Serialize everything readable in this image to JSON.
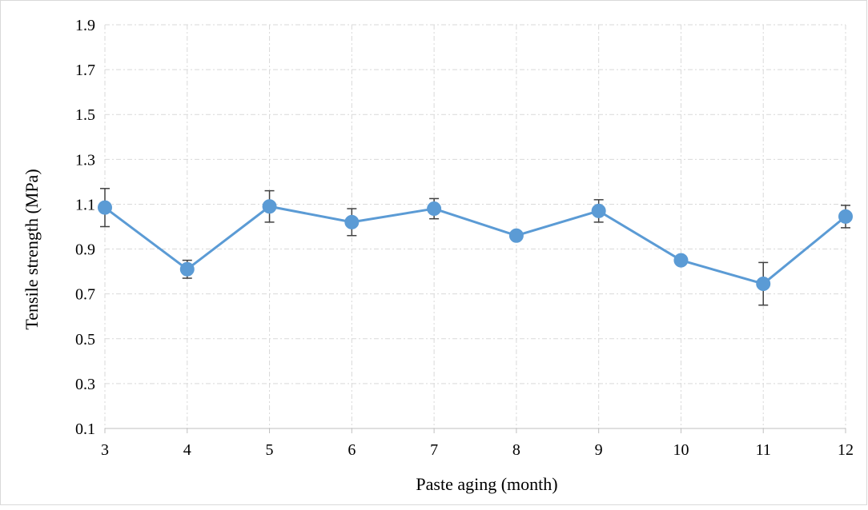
{
  "chart_data": {
    "type": "line",
    "title": "",
    "xlabel": "Paste aging (month)",
    "ylabel": "Tensile strength (MPa)",
    "x": [
      3,
      4,
      5,
      6,
      7,
      8,
      9,
      10,
      11,
      12
    ],
    "xlim": [
      3,
      12
    ],
    "ylim": [
      0.1,
      1.9
    ],
    "y_ticks": [
      "0.1",
      "0.3",
      "0.5",
      "0.7",
      "0.9",
      "1.1",
      "1.3",
      "1.5",
      "1.7",
      "1.9"
    ],
    "x_ticks": [
      "3",
      "4",
      "5",
      "6",
      "7",
      "8",
      "9",
      "10",
      "11",
      "12"
    ],
    "grid": true,
    "legend": "none",
    "series": [
      {
        "color": "#5b9bd5",
        "values": [
          1.085,
          0.81,
          1.09,
          1.02,
          1.08,
          0.96,
          1.07,
          0.85,
          0.745,
          1.045
        ],
        "error": [
          0.085,
          0.04,
          0.07,
          0.06,
          0.045,
          0.015,
          0.05,
          0.015,
          0.095,
          0.05
        ]
      }
    ],
    "colors": {
      "series": "#5b9bd5",
      "error_bar": "#404040",
      "grid": "#d9d9d9",
      "axis": "#bfbfbf"
    }
  }
}
